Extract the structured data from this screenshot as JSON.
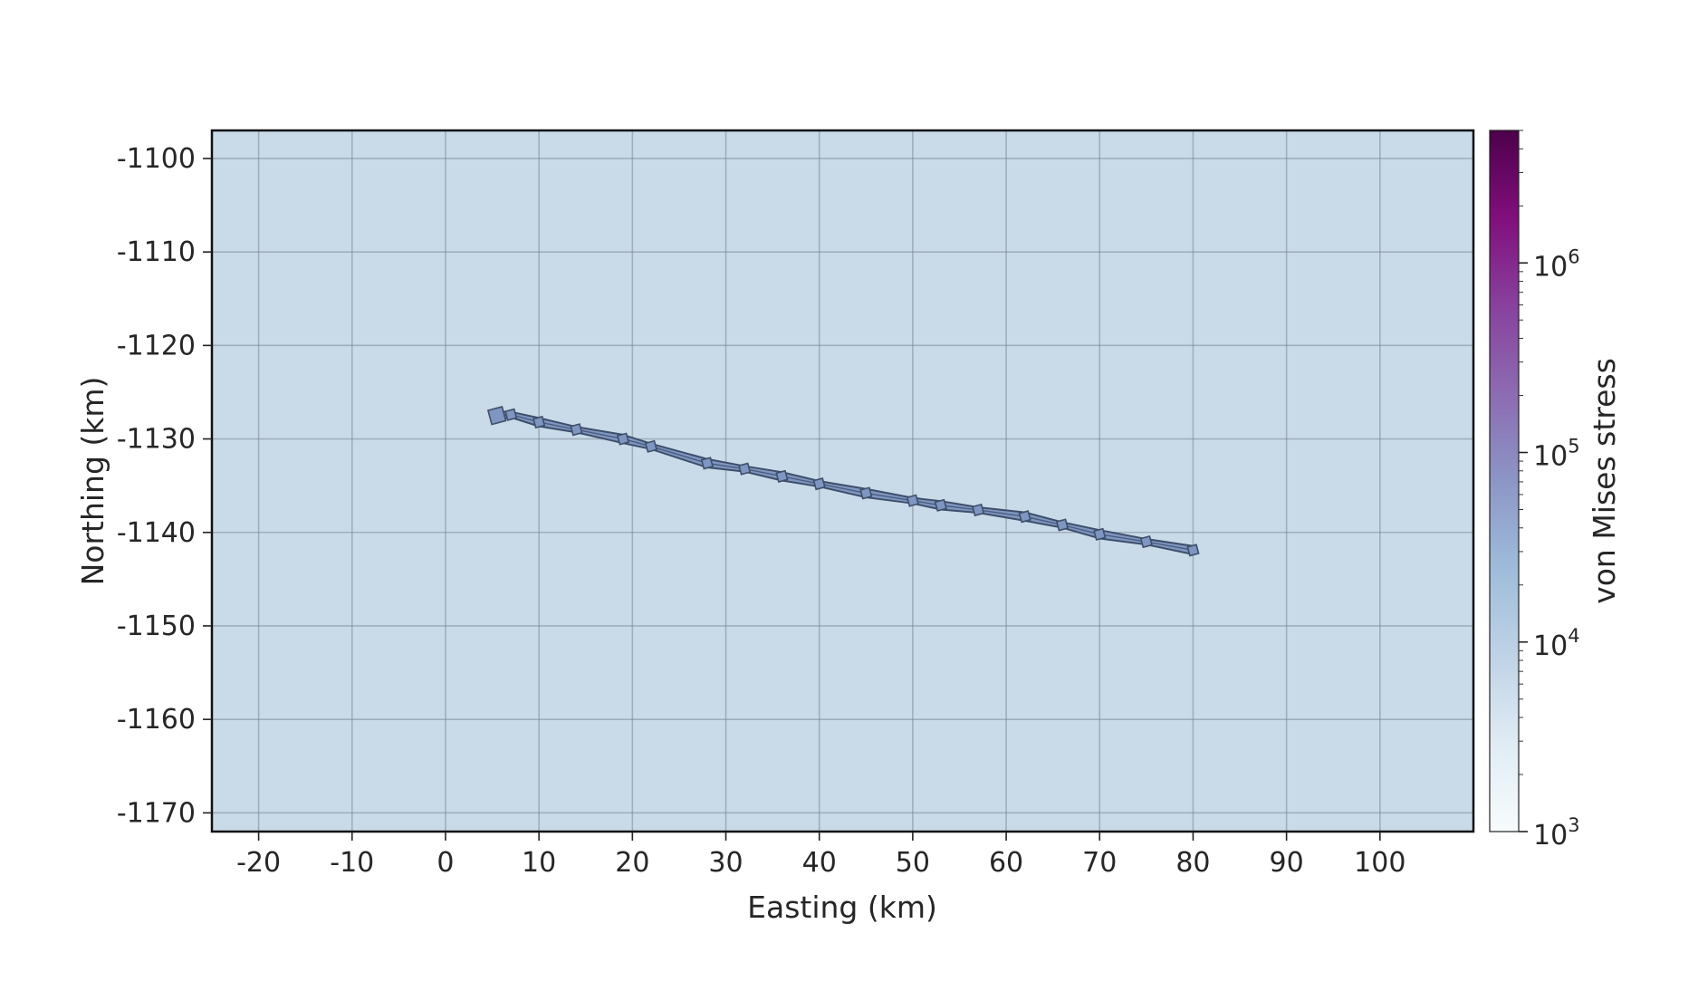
{
  "chart_data": {
    "type": "line",
    "title": "",
    "xlabel": "Easting (km)",
    "ylabel": "Northing (km)",
    "xlim": [
      -25,
      110
    ],
    "ylim": [
      -1172,
      -1097
    ],
    "x_ticks": [
      -20,
      -10,
      0,
      10,
      20,
      30,
      40,
      50,
      60,
      70,
      80,
      90,
      100
    ],
    "y_ticks": [
      -1100,
      -1110,
      -1120,
      -1130,
      -1140,
      -1150,
      -1160,
      -1170
    ],
    "x_tick_labels": [
      "-20",
      "-10",
      "0",
      "10",
      "20",
      "30",
      "40",
      "50",
      "60",
      "70",
      "80",
      "90",
      "100"
    ],
    "y_tick_labels": [
      "-1100",
      "-1110",
      "-1120",
      "-1130",
      "-1140",
      "-1150",
      "-1160",
      "-1170"
    ],
    "grid": true,
    "background_color": "#c9dbe9",
    "series": [
      {
        "x": [
          5.5,
          7,
          10,
          14,
          19,
          22,
          28,
          32,
          36,
          40,
          45,
          50,
          53,
          57,
          62,
          66,
          70,
          75,
          80
        ],
        "y": [
          -1127.5,
          -1127.4,
          -1128.2,
          -1129,
          -1130,
          -1130.8,
          -1132.6,
          -1133.2,
          -1134,
          -1134.8,
          -1135.8,
          -1136.6,
          -1137.1,
          -1137.6,
          -1138.3,
          -1139.2,
          -1140.2,
          -1141,
          -1141.9
        ],
        "stroke_color": "#3f4f6a",
        "fill_color": "#7f96c2",
        "band_half_width_km": 0.45
      }
    ],
    "colorbar": {
      "label": "von Mises stress",
      "scale": "log",
      "range": [
        1000,
        5000000
      ],
      "ticks": [
        1000,
        10000,
        100000,
        1000000
      ],
      "tick_bases": [
        "10",
        "10",
        "10",
        "10"
      ],
      "tick_exponents": [
        "3",
        "4",
        "5",
        "6"
      ],
      "colormap": [
        "#f7fcfd",
        "#e0ecf4",
        "#bfd3e6",
        "#9ebcda",
        "#8c96c6",
        "#8c6bb1",
        "#88419d",
        "#810f7c",
        "#4d004b"
      ]
    }
  }
}
